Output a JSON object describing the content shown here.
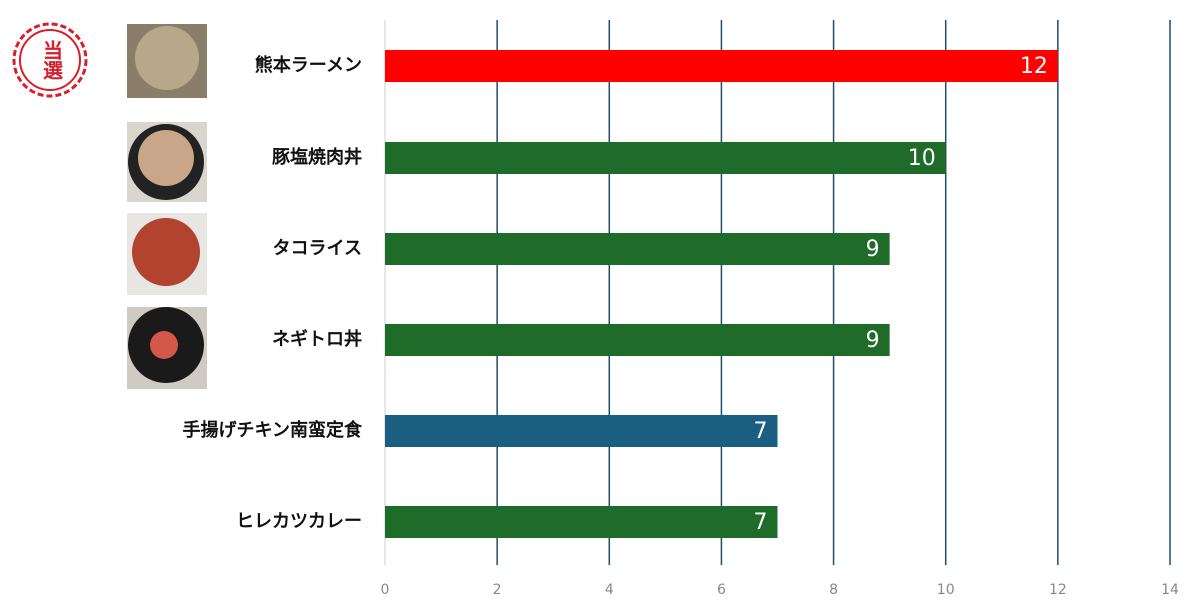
{
  "chart_data": {
    "type": "bar",
    "orientation": "horizontal",
    "annotation": "当選",
    "categories": [
      "熊本ラーメン",
      "豚塩焼肉丼",
      "タコライス",
      "ネギトロ丼",
      "手揚げチキン南蛮定食",
      "ヒレカツカレー"
    ],
    "values": [
      12,
      10,
      9,
      9,
      7,
      7
    ],
    "colors": [
      "#ff0000",
      "#1e6b2a",
      "#1e6b2a",
      "#1e6b2a",
      "#1a5f82",
      "#1e6b2a"
    ],
    "xlim": [
      0,
      14
    ],
    "xticks": [
      0,
      2,
      4,
      6,
      8,
      10,
      12,
      14
    ],
    "grid": true
  }
}
